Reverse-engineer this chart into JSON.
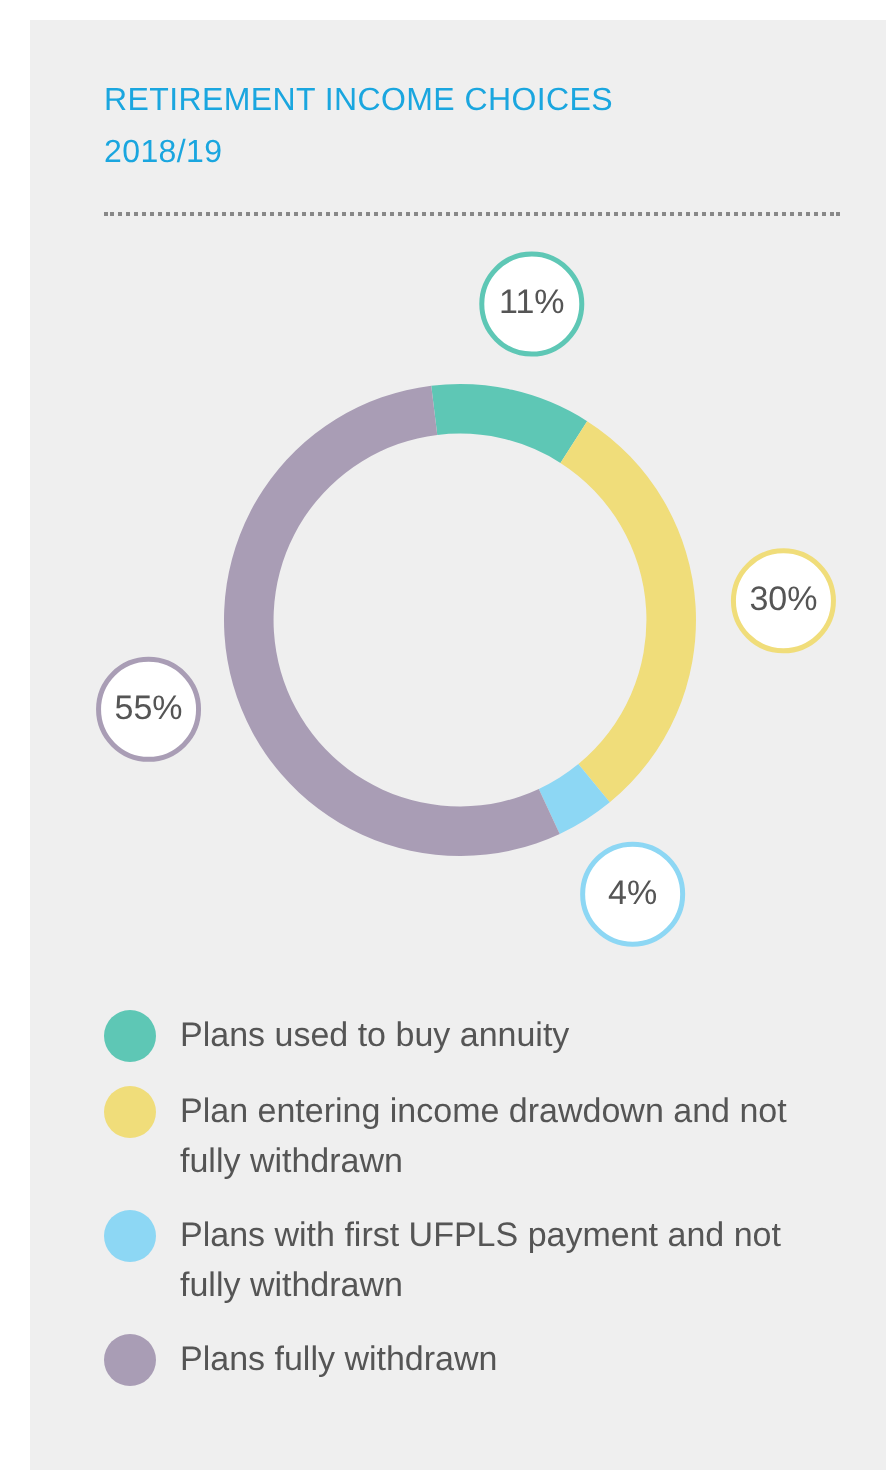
{
  "chart_data": {
    "type": "donut",
    "title": "RETIREMENT INCOME CHOICES 2018/19",
    "categories": [
      "Plans used to buy annuity",
      "Plan entering income drawdown and not fully withdrawn",
      "Plans with first UFPLS payment and not fully withdrawn",
      "Plans fully withdrawn"
    ],
    "values": [
      11,
      30,
      4,
      55
    ],
    "colors": [
      "#5ec7b5",
      "#f0dd7a",
      "#8dd7f4",
      "#a99db5"
    ],
    "value_labels": [
      "11%",
      "30%",
      "4%",
      "55%"
    ],
    "legend": "bottom"
  }
}
